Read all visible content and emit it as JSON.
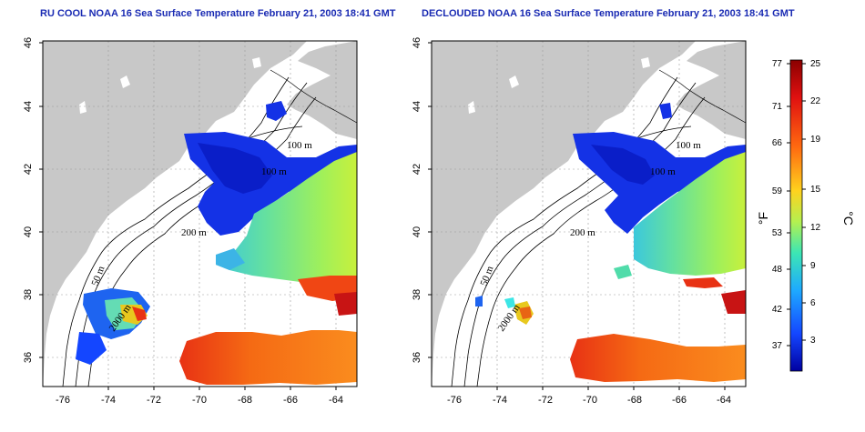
{
  "titles": {
    "left": "RU COOL NOAA 16 Sea Surface Temperature February 21, 2003 18:41 GMT",
    "right": "DECLOUDED NOAA 16 Sea Surface Temperature February 21, 2003 18:41 GMT"
  },
  "axes": {
    "lon_ticks": [
      "-76",
      "-74",
      "-72",
      "-70",
      "-68",
      "-66",
      "-64"
    ],
    "lat_ticks": [
      "46",
      "44",
      "42",
      "40",
      "38",
      "36"
    ]
  },
  "bathymetry_labels": {
    "left": [
      "100 m",
      "100 m",
      "200 m",
      "50 m",
      "2000 m"
    ],
    "right": [
      "100 m",
      "100 m",
      "200 m",
      "50 m",
      "2000 m"
    ]
  },
  "colorbar": {
    "fahrenheit_ticks": [
      "77",
      "71",
      "66",
      "59",
      "53",
      "48",
      "42",
      "37"
    ],
    "celsius_ticks": [
      "25",
      "22",
      "19",
      "15",
      "12",
      "9",
      "6",
      "3"
    ],
    "fahrenheit_unit": "°F",
    "celsius_unit": "°C",
    "gradient_stops": [
      "#8b0000",
      "#e01010",
      "#ff6a10",
      "#ffd21e",
      "#b4f050",
      "#3ce6b4",
      "#1eaaff",
      "#1446ff",
      "#0000a0"
    ]
  },
  "colors": {
    "land": "#c8c8c8",
    "title": "#1a2bb3",
    "cold": "#1432e6",
    "mid": "#50dcaa",
    "warm": "#f56a14"
  }
}
